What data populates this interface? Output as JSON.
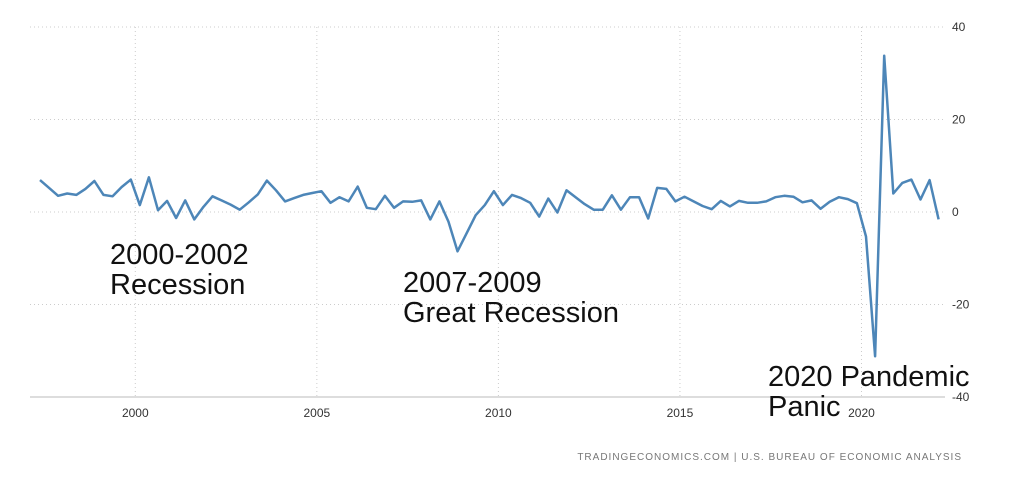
{
  "chart_data": {
    "type": "line",
    "x": [
      1997.375,
      1997.625,
      1997.875,
      1998.125,
      1998.375,
      1998.625,
      1998.875,
      1999.125,
      1999.375,
      1999.625,
      1999.875,
      2000.125,
      2000.375,
      2000.625,
      2000.875,
      2001.125,
      2001.375,
      2001.625,
      2001.875,
      2002.125,
      2002.375,
      2002.625,
      2002.875,
      2003.125,
      2003.375,
      2003.625,
      2003.875,
      2004.125,
      2004.375,
      2004.625,
      2004.875,
      2005.125,
      2005.375,
      2005.625,
      2005.875,
      2006.125,
      2006.375,
      2006.625,
      2006.875,
      2007.125,
      2007.375,
      2007.625,
      2007.875,
      2008.125,
      2008.375,
      2008.625,
      2008.875,
      2009.125,
      2009.375,
      2009.625,
      2009.875,
      2010.125,
      2010.375,
      2010.625,
      2010.875,
      2011.125,
      2011.375,
      2011.625,
      2011.875,
      2012.125,
      2012.375,
      2012.625,
      2012.875,
      2013.125,
      2013.375,
      2013.625,
      2013.875,
      2014.125,
      2014.375,
      2014.625,
      2014.875,
      2015.125,
      2015.375,
      2015.625,
      2015.875,
      2016.125,
      2016.375,
      2016.625,
      2016.875,
      2017.125,
      2017.375,
      2017.625,
      2017.875,
      2018.125,
      2018.375,
      2018.625,
      2018.875,
      2019.125,
      2019.375,
      2019.625,
      2019.875,
      2020.125,
      2020.375,
      2020.625,
      2020.875,
      2021.125,
      2021.375,
      2021.625,
      2021.875,
      2022.125
    ],
    "series": [
      {
        "color": "#4d86b8",
        "values": [
          6.9,
          5.2,
          3.5,
          4.0,
          3.7,
          5.0,
          6.7,
          3.7,
          3.4,
          5.4,
          7.0,
          1.5,
          7.5,
          0.4,
          2.4,
          -1.3,
          2.5,
          -1.6,
          1.1,
          3.4,
          2.5,
          1.6,
          0.5,
          2.1,
          3.8,
          6.8,
          4.7,
          2.3,
          3.0,
          3.7,
          4.1,
          4.5,
          2.0,
          3.2,
          2.3,
          5.5,
          0.9,
          0.6,
          3.5,
          0.9,
          2.3,
          2.2,
          2.5,
          -1.6,
          2.3,
          -2.1,
          -8.5,
          -4.6,
          -0.7,
          1.5,
          4.5,
          1.5,
          3.7,
          3.0,
          2.0,
          -1.0,
          2.9,
          -0.1,
          4.7,
          3.2,
          1.7,
          0.5,
          0.5,
          3.6,
          0.5,
          3.2,
          3.2,
          -1.4,
          5.2,
          5.0,
          2.3,
          3.3,
          2.3,
          1.3,
          0.6,
          2.4,
          1.2,
          2.4,
          2.0,
          2.0,
          2.3,
          3.2,
          3.5,
          3.3,
          2.1,
          2.5,
          0.7,
          2.2,
          3.2,
          2.8,
          1.9,
          -5.3,
          -31.2,
          33.8,
          4.0,
          6.3,
          7.0,
          2.7,
          6.9,
          -1.6
        ]
      }
    ],
    "xlim": [
      1997.1,
      2022.3
    ],
    "xticks": [
      2000,
      2005,
      2010,
      2015,
      2020
    ],
    "ylim": [
      -40,
      40
    ],
    "yticks": [
      -40,
      -20,
      0,
      20,
      40
    ],
    "grid": true,
    "annotations": [
      [
        "2000-2002",
        "Recession"
      ],
      [
        "2007-2009",
        "Great Recession"
      ],
      [
        "2020 Pandemic",
        "Panic"
      ]
    ],
    "source": "TRADINGECONOMICS.COM | U.S. BUREAU OF ECONOMIC ANALYSIS"
  }
}
